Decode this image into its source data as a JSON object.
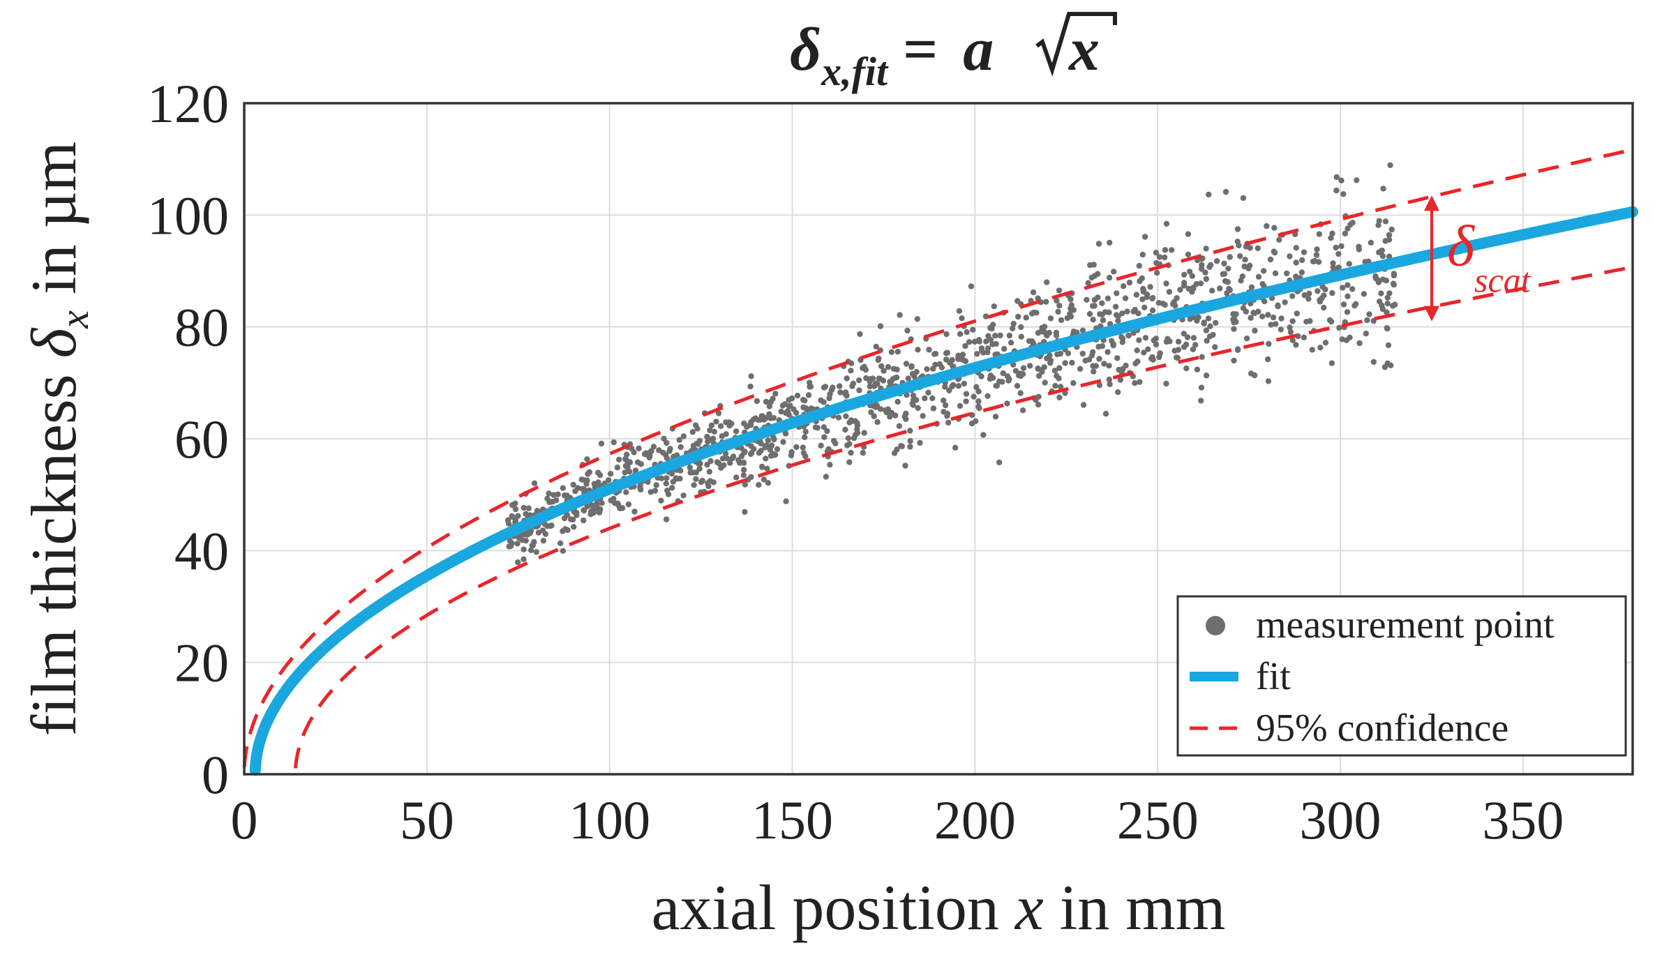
{
  "chart_data": {
    "type": "scatter",
    "title": {
      "prefix": "δ",
      "subscript": "x,fit",
      "equals": "=",
      "coef": "a",
      "radicand": "x"
    },
    "xlabel": {
      "before": "axial position ",
      "var": "x",
      "after": " in mm"
    },
    "ylabel": {
      "before": "film thickness ",
      "var": "δ",
      "sub": "x",
      "after": " in µm"
    },
    "xlim": [
      0,
      380
    ],
    "ylim": [
      0,
      120
    ],
    "xticks": [
      0,
      50,
      100,
      150,
      200,
      250,
      300,
      350
    ],
    "yticks": [
      0,
      20,
      40,
      60,
      80,
      100,
      120
    ],
    "grid": true,
    "fit": {
      "name": "fit",
      "a": 5.18,
      "x0": 3,
      "x_range": [
        3,
        380
      ],
      "color": "#1aa7e0"
    },
    "confidence": {
      "name": "95% confidence",
      "color": "#e8262a",
      "upper": {
        "a": 5.73,
        "x0": 0
      },
      "lower": {
        "a": 4.74,
        "x0": 14
      }
    },
    "measurements": {
      "name": "measurement point",
      "color": "#6e6e6e",
      "x_range": [
        72,
        315
      ],
      "count": 1400,
      "scatter_rule": "sd rises linearly from 2.5 µm at x=72 mm to 8 µm at x=315 mm around the fit curve"
    },
    "annotation": {
      "symbol": "δ",
      "subscript": "scat",
      "x": 325,
      "y_top": 103.5,
      "y_bottom": 81,
      "color": "#e8262a"
    },
    "legend": {
      "position": "bottom-right",
      "entries": [
        "measurement point",
        "fit",
        "95% confidence"
      ]
    }
  }
}
